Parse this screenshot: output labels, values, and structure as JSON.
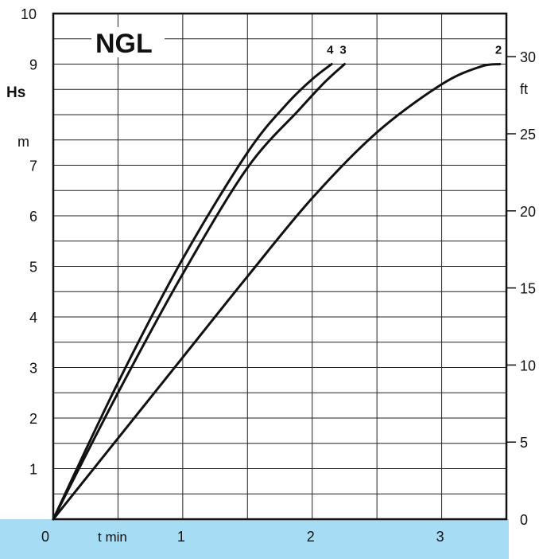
{
  "chart_data": {
    "type": "line",
    "title": "NGL",
    "xlabel": "t  min",
    "ylabel": "Hs",
    "ylabel_unit": "m",
    "y2label": "ft",
    "xlim": [
      0,
      3.5
    ],
    "ylim": [
      0,
      10
    ],
    "y2lim": [
      0,
      32.8
    ],
    "grid": true,
    "x_ticks": [
      "0",
      "1",
      "2",
      "3"
    ],
    "y_ticks": [
      "1",
      "2",
      "3",
      "4",
      "5",
      "6",
      "7",
      "8",
      "9",
      "10"
    ],
    "y2_ticks": [
      "0",
      "5",
      "10",
      "15",
      "20",
      "25",
      "30"
    ],
    "series": [
      {
        "name": "4",
        "x": [
          0,
          0.5,
          1.0,
          1.5,
          1.8,
          2.0,
          2.15
        ],
        "y": [
          0,
          2.7,
          5.15,
          7.25,
          8.2,
          8.7,
          9.0
        ]
      },
      {
        "name": "3",
        "x": [
          0,
          0.5,
          1.0,
          1.5,
          1.9,
          2.1,
          2.25
        ],
        "y": [
          0,
          2.5,
          4.85,
          6.95,
          8.1,
          8.65,
          9.0
        ]
      },
      {
        "name": "2",
        "x": [
          0,
          0.5,
          1.0,
          1.5,
          2.0,
          2.5,
          3.0,
          3.3,
          3.45
        ],
        "y": [
          0,
          1.6,
          3.2,
          4.8,
          6.35,
          7.65,
          8.6,
          8.95,
          9.0
        ]
      }
    ]
  }
}
